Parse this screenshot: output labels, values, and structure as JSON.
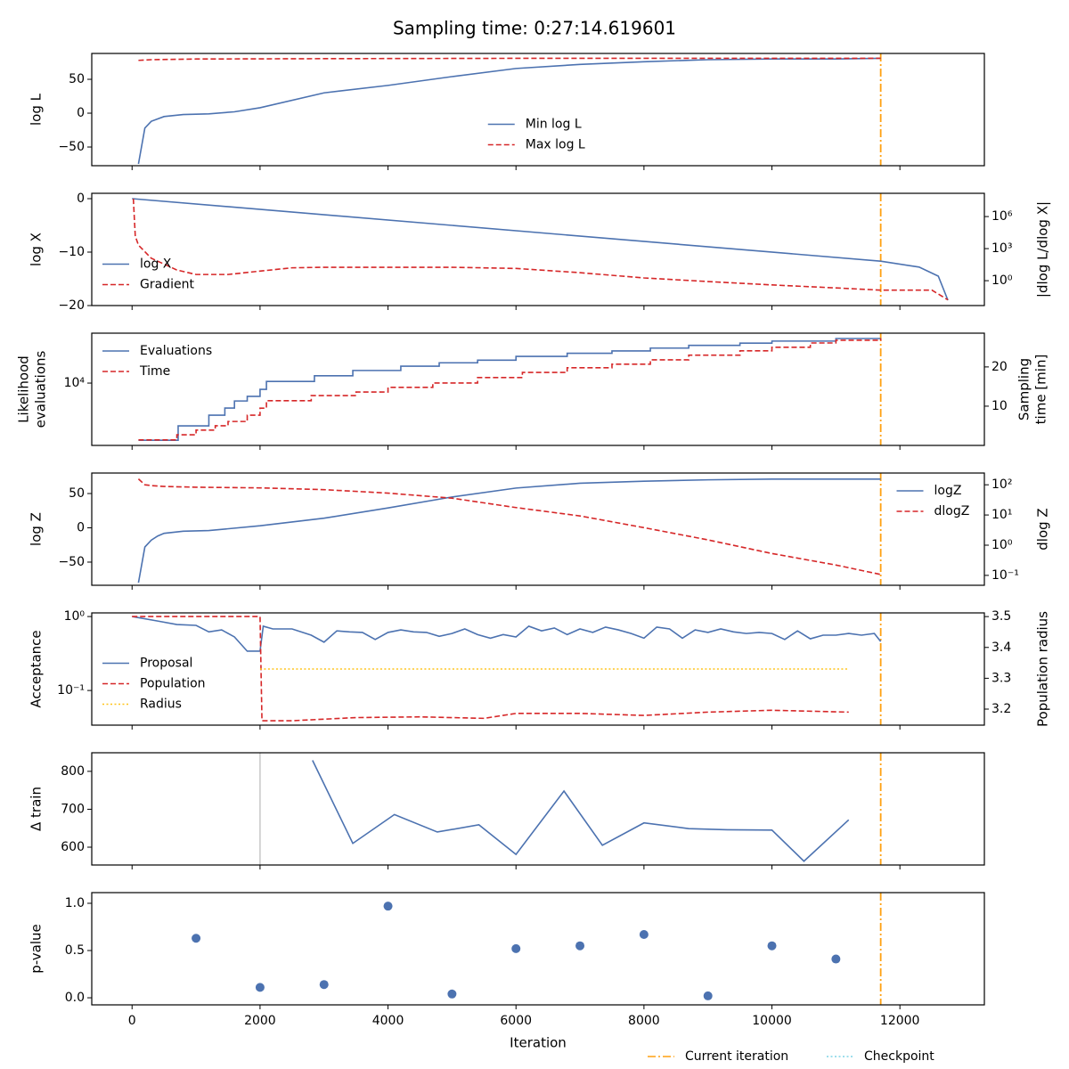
{
  "figure": {
    "title": "Sampling time: 0:27:14.619601",
    "xlabel": "Iteration",
    "xlim": [
      -630,
      13320
    ],
    "xticks": [
      0,
      2000,
      4000,
      6000,
      8000,
      10000,
      12000
    ],
    "current_iteration": 11700,
    "current_color": "#ffa010",
    "legend": [
      {
        "name": "Current iteration",
        "color": "#ffa010",
        "dash": "dashdot"
      },
      {
        "name": "Checkpoint",
        "color": "#7fd4e6",
        "dash": "dotted"
      }
    ]
  },
  "chart_data": [
    {
      "type": "line",
      "ylabel": "log L",
      "ylim": [
        -77.6,
        88.2
      ],
      "yticks": [
        {
          "value": -50,
          "label": "−50"
        },
        0,
        50
      ],
      "legend": "lower center",
      "series": [
        {
          "name": "Min log L",
          "color": "#4c72b0",
          "dash": "solid",
          "x": [
            100,
            200,
            300,
            500,
            800,
            1200,
            1600,
            2000,
            3000,
            4000,
            5000,
            6000,
            7000,
            8000,
            9000,
            10000,
            11000,
            11700
          ],
          "values": [
            -75,
            -22,
            -12,
            -5,
            -2,
            -1,
            2,
            8,
            30,
            41,
            54,
            66,
            72,
            76,
            79,
            80,
            80,
            81
          ]
        },
        {
          "name": "Max log L",
          "color": "#d62728",
          "dash": "dashed",
          "x": [
            100,
            300,
            1000,
            3000,
            6000,
            9000,
            11700
          ],
          "values": [
            78,
            79,
            80,
            80.5,
            81,
            81,
            81
          ]
        }
      ]
    },
    {
      "type": "line",
      "ylabel": "log X",
      "ylim": [
        -20,
        1
      ],
      "yticks": [
        {
          "value": -20,
          "label": "−20"
        },
        {
          "value": -10,
          "label": "−10"
        },
        0
      ],
      "y2label": "|dlog L/dlog X|",
      "y2log": true,
      "y2lim": [
        0.0047,
        150000000
      ],
      "y2ticks": [
        {
          "value": 1,
          "label": "10⁰"
        },
        {
          "value": 1000,
          "label": "10³"
        },
        {
          "value": 1000000,
          "label": "10⁶"
        }
      ],
      "legend": "lower left",
      "series": [
        {
          "name": "log X",
          "color": "#4c72b0",
          "dash": "solid",
          "x": [
            0,
            11700,
            12300,
            12600,
            12750
          ],
          "values": [
            0,
            -11.7,
            -12.8,
            -14.5,
            -19
          ]
        },
        {
          "name": "Gradient",
          "color": "#d62728",
          "dash": "dashed",
          "axis": "y2",
          "x": [
            20,
            50,
            100,
            300,
            700,
            1000,
            1500,
            2000,
            2500,
            3000,
            5000,
            6000,
            7000,
            8000,
            9000,
            10000,
            11000,
            11700,
            12500,
            12750
          ],
          "values": [
            47000000,
            15000,
            2100,
            126,
            10,
            3.8,
            3.8,
            7.9,
            16,
            18,
            18,
            14,
            5.6,
            1.8,
            0.83,
            0.4,
            0.21,
            0.13,
            0.13,
            0.016
          ]
        }
      ]
    },
    {
      "type": "line",
      "ylabel": [
        "Likelihood",
        "evaluations"
      ],
      "ylog": true,
      "ylim": [
        4800,
        18000
      ],
      "yticks": [
        {
          "value": 10000,
          "label": "10⁴"
        }
      ],
      "y2label": [
        "Sampling",
        "time [min]"
      ],
      "y2lim": [
        0,
        28.6
      ],
      "y2ticks": [
        10,
        20
      ],
      "legend": "upper left",
      "series": [
        {
          "name": "Evaluations",
          "color": "#4c72b0",
          "dash": "solid",
          "x": [
            100,
            720,
            720,
            1200,
            1200,
            1450,
            1450,
            1600,
            1600,
            1800,
            1800,
            2000,
            2000,
            2100,
            2100,
            2850,
            2850,
            3450,
            3450,
            4200,
            4200,
            4800,
            4800,
            5400,
            5400,
            6000,
            6000,
            6800,
            6800,
            7500,
            7500,
            8100,
            8100,
            8700,
            8700,
            9500,
            9500,
            10000,
            10000,
            11000,
            11000,
            11700
          ],
          "values": [
            5100,
            5100,
            6040,
            6040,
            6850,
            6850,
            7450,
            7450,
            8100,
            8100,
            8550,
            8550,
            9290,
            9290,
            10200,
            10200,
            10900,
            10900,
            11600,
            11600,
            12200,
            12200,
            12700,
            12700,
            13100,
            13100,
            13700,
            13700,
            14200,
            14200,
            14600,
            14600,
            15100,
            15100,
            15600,
            15600,
            16000,
            16000,
            16400,
            16400,
            16900,
            16900
          ]
        },
        {
          "name": "Time",
          "color": "#d62728",
          "dash": "dashed",
          "axis": "y2",
          "x": [
            100,
            700,
            700,
            1000,
            1000,
            1300,
            1300,
            1500,
            1500,
            1800,
            1800,
            2000,
            2000,
            2100,
            2100,
            2800,
            2800,
            3500,
            3500,
            4000,
            4000,
            4700,
            4700,
            5400,
            5400,
            6100,
            6100,
            6800,
            6800,
            7500,
            7500,
            8100,
            8100,
            8700,
            8700,
            9500,
            9500,
            10000,
            10000,
            10600,
            10600,
            11000,
            11000,
            11700,
            11700
          ],
          "values": [
            1.4,
            1.4,
            2.7,
            2.7,
            3.9,
            3.9,
            5,
            5,
            6.1,
            6.1,
            7.7,
            7.7,
            9.5,
            9.5,
            11.4,
            11.4,
            12.7,
            12.7,
            13.6,
            13.6,
            14.8,
            14.8,
            15.9,
            15.9,
            17.3,
            17.3,
            18.6,
            18.6,
            19.8,
            19.8,
            20.7,
            20.7,
            21.8,
            21.8,
            23,
            23,
            24.1,
            24.1,
            25,
            25,
            26.1,
            26.1,
            26.8,
            26.8,
            27.3
          ]
        }
      ]
    },
    {
      "type": "line",
      "ylabel": "log Z",
      "ylim": [
        -83.8,
        79.9
      ],
      "yticks": [
        {
          "value": -50,
          "label": "−50"
        },
        0,
        50
      ],
      "y2label": "dlog Z",
      "y2log": true,
      "y2lim": [
        0.047,
        245
      ],
      "y2ticks": [
        {
          "value": 0.1,
          "label": "10⁻¹"
        },
        {
          "value": 1,
          "label": "10⁰"
        },
        {
          "value": 10,
          "label": "10¹"
        },
        {
          "value": 100,
          "label": "10²"
        }
      ],
      "legend": "upper right",
      "series": [
        {
          "name": "logZ",
          "color": "#4c72b0",
          "dash": "solid",
          "x": [
            100,
            200,
            300,
            400,
            500,
            800,
            1200,
            2000,
            3000,
            4000,
            5000,
            6000,
            7000,
            8000,
            9000,
            10000,
            11700
          ],
          "values": [
            -80,
            -28,
            -18,
            -12,
            -8,
            -5,
            -4,
            3,
            14,
            29,
            45,
            58,
            65,
            68,
            70,
            71,
            71
          ]
        },
        {
          "name": "dlogZ",
          "color": "#d62728",
          "dash": "dashed",
          "axis": "y2",
          "x": [
            100,
            200,
            300,
            500,
            1000,
            2000,
            3000,
            4000,
            5000,
            6000,
            7000,
            8000,
            9000,
            10000,
            11000,
            11700
          ],
          "values": [
            156,
            100,
            94,
            88,
            83,
            79,
            69,
            53,
            36,
            17.6,
            9.3,
            3.8,
            1.5,
            0.53,
            0.22,
            0.107
          ]
        }
      ]
    },
    {
      "type": "line",
      "ylabel": "Acceptance",
      "ylog": true,
      "ylim": [
        0.034,
        1.12
      ],
      "yticks": [
        {
          "value": 0.1,
          "label": "10⁻¹"
        },
        {
          "value": 1,
          "label": "10⁰"
        }
      ],
      "y2label": "Population radius",
      "y2lim": [
        3.148,
        3.512
      ],
      "y2ticks": [
        3.2,
        3.3,
        3.4,
        3.5
      ],
      "legend": "lower left",
      "series": [
        {
          "name": "Proposal",
          "color": "#4c72b0",
          "dash": "solid",
          "x": [
            0,
            400,
            700,
            1000,
            1200,
            1400,
            1600,
            1800,
            2000,
            2050,
            2200,
            2500,
            2800,
            3000,
            3200,
            3400,
            3600,
            3800,
            4000,
            4200,
            4400,
            4600,
            4800,
            5000,
            5200,
            5400,
            5600,
            5800,
            6000,
            6200,
            6400,
            6600,
            6800,
            7000,
            7200,
            7400,
            7600,
            7800,
            8000,
            8200,
            8400,
            8600,
            8800,
            9000,
            9200,
            9400,
            9600,
            9800,
            10000,
            10200,
            10400,
            10600,
            10800,
            11000,
            11200,
            11400,
            11600,
            11700
          ],
          "values": [
            1.0,
            0.87,
            0.78,
            0.76,
            0.62,
            0.66,
            0.53,
            0.34,
            0.34,
            0.74,
            0.68,
            0.68,
            0.56,
            0.45,
            0.64,
            0.62,
            0.61,
            0.49,
            0.61,
            0.66,
            0.62,
            0.61,
            0.54,
            0.59,
            0.68,
            0.57,
            0.51,
            0.57,
            0.53,
            0.74,
            0.64,
            0.7,
            0.57,
            0.68,
            0.61,
            0.72,
            0.66,
            0.59,
            0.51,
            0.72,
            0.68,
            0.51,
            0.66,
            0.61,
            0.68,
            0.62,
            0.59,
            0.61,
            0.59,
            0.49,
            0.64,
            0.5,
            0.56,
            0.56,
            0.59,
            0.56,
            0.59,
            0.46
          ]
        },
        {
          "name": "Population",
          "color": "#d62728",
          "dash": "dashed",
          "x": [
            0,
            2000,
            2030,
            2500,
            3500,
            4500,
            5000,
            5500,
            6000,
            7000,
            8000,
            9000,
            10000,
            11200
          ],
          "values": [
            1.0,
            1.0,
            0.039,
            0.039,
            0.043,
            0.044,
            0.043,
            0.042,
            0.049,
            0.049,
            0.046,
            0.051,
            0.054,
            0.051
          ]
        },
        {
          "name": "Radius",
          "color": "#ffc41a",
          "dash": "dotted",
          "axis": "y2",
          "x": [
            2000,
            11200
          ],
          "values": [
            3.33,
            3.33
          ]
        }
      ]
    },
    {
      "type": "line",
      "ylabel": "Δ train",
      "ylim": [
        553,
        849
      ],
      "yticks": [
        600,
        700,
        800
      ],
      "vline": 2000,
      "vline_color": "#c8c8c8",
      "series": [
        {
          "color": "#4c72b0",
          "dash": "solid",
          "x": [
            2820,
            3450,
            4100,
            4770,
            5420,
            6000,
            6750,
            7350,
            8000,
            8700,
            9300,
            10000,
            10500,
            11200
          ],
          "values": [
            829,
            610,
            686,
            640,
            659,
            581,
            748,
            605,
            664,
            649,
            646,
            645,
            563,
            672
          ]
        }
      ]
    },
    {
      "type": "scatter",
      "ylabel": "p-value",
      "ylim": [
        -0.075,
        1.113
      ],
      "yticks": [
        {
          "value": 0,
          "label": "0.0"
        },
        0.5,
        {
          "value": 1,
          "label": "1.0"
        }
      ],
      "series": [
        {
          "color": "#4c72b0",
          "x": [
            1000,
            2000,
            3000,
            4000,
            5000,
            6000,
            7000,
            8000,
            9000,
            10000,
            11000
          ],
          "values": [
            0.63,
            0.11,
            0.14,
            0.97,
            0.04,
            0.52,
            0.55,
            0.67,
            0.02,
            0.55,
            0.41
          ]
        }
      ]
    }
  ]
}
